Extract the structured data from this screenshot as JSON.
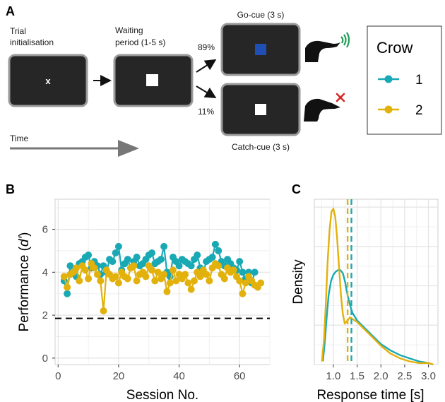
{
  "panel_a": {
    "letter": "A",
    "trial_label": [
      "Trial",
      "initialisation"
    ],
    "waiting_label": [
      "Waiting",
      "period (1-5 s)"
    ],
    "go_label": "Go-cue (3 s)",
    "catch_label": "Catch-cue (3 s)",
    "pct_go": "89%",
    "pct_catch": "11%",
    "fixation_symbol": "x",
    "time_label": "Time",
    "colors": {
      "screen": "#262626",
      "screen_border": "#9a9a9a",
      "go_square": "#1f4fb5",
      "square": "#ffffff",
      "check": "#1f9d55",
      "cross": "#d62828"
    },
    "icons": [
      "crow-go-icon",
      "crow-catch-icon"
    ]
  },
  "legend": {
    "title": "Crow",
    "entries": [
      {
        "label": "1",
        "color": "#19a9b5"
      },
      {
        "label": "2",
        "color": "#e2b10b"
      }
    ]
  },
  "chart_data": [
    {
      "type": "line",
      "panel": "B",
      "xlabel": "Session No.",
      "ylabel": "Performance (d')",
      "xlim": [
        -1,
        70
      ],
      "ylim": [
        -0.3,
        7.4
      ],
      "xticks": [
        0,
        20,
        40,
        60
      ],
      "yticks": [
        0,
        2,
        4,
        6
      ],
      "grid": true,
      "threshold": 1.85,
      "series": [
        {
          "name": "1",
          "color": "#19a9b5",
          "x": [
            2,
            3,
            4,
            5,
            6,
            7,
            8,
            9,
            10,
            11,
            12,
            13,
            14,
            15,
            16,
            17,
            18,
            19,
            20,
            21,
            22,
            23,
            24,
            25,
            26,
            27,
            28,
            29,
            30,
            31,
            32,
            33,
            34,
            35,
            36,
            37,
            38,
            39,
            40,
            41,
            42,
            43,
            44,
            45,
            46,
            47,
            48,
            49,
            50,
            51,
            52,
            53,
            54,
            55,
            56,
            57,
            58,
            59,
            60,
            61,
            62,
            63,
            64,
            65
          ],
          "y": [
            3.6,
            3.0,
            4.3,
            4.0,
            3.8,
            4.4,
            4.5,
            4.7,
            4.8,
            4.2,
            4.5,
            4.3,
            3.9,
            4.3,
            4.0,
            4.6,
            4.5,
            4.9,
            5.2,
            4.1,
            4.4,
            4.6,
            4.2,
            4.5,
            4.7,
            4.3,
            4.4,
            4.6,
            4.8,
            4.9,
            4.4,
            4.5,
            4.6,
            5.2,
            4.0,
            3.8,
            4.7,
            4.5,
            4.3,
            4.6,
            4.5,
            4.4,
            4.3,
            4.6,
            4.8,
            4.2,
            4.0,
            4.5,
            4.6,
            4.7,
            5.3,
            5.0,
            4.5,
            4.3,
            4.6,
            4.4,
            4.2,
            4.1,
            4.5,
            4.0,
            3.7,
            4.0,
            3.5,
            4.0
          ]
        },
        {
          "name": "2",
          "color": "#e2b10b",
          "x": [
            2,
            3,
            4,
            5,
            6,
            7,
            8,
            9,
            10,
            11,
            12,
            13,
            14,
            15,
            16,
            17,
            18,
            19,
            20,
            21,
            22,
            23,
            24,
            25,
            26,
            27,
            28,
            29,
            30,
            31,
            32,
            33,
            34,
            35,
            36,
            37,
            38,
            39,
            40,
            41,
            42,
            43,
            44,
            45,
            46,
            47,
            48,
            49,
            50,
            51,
            52,
            53,
            54,
            55,
            56,
            57,
            58,
            59,
            60,
            61,
            62,
            63,
            64,
            65,
            66,
            67
          ],
          "y": [
            3.8,
            3.3,
            3.9,
            4.0,
            4.2,
            3.6,
            4.3,
            4.1,
            3.7,
            4.4,
            4.2,
            3.9,
            3.6,
            2.2,
            4.1,
            3.9,
            3.7,
            3.8,
            3.5,
            4.0,
            3.8,
            3.7,
            4.2,
            4.3,
            3.6,
            3.9,
            4.0,
            3.8,
            4.3,
            4.1,
            3.6,
            4.0,
            3.7,
            3.9,
            3.1,
            3.5,
            4.1,
            3.6,
            3.9,
            3.7,
            3.9,
            3.5,
            3.2,
            3.6,
            4.0,
            3.8,
            4.1,
            3.9,
            3.6,
            4.2,
            4.4,
            4.3,
            3.9,
            3.7,
            4.2,
            4.0,
            4.1,
            3.8,
            3.6,
            3.0,
            3.5,
            3.8,
            3.6,
            3.4,
            3.3,
            3.5
          ]
        }
      ]
    },
    {
      "type": "line",
      "panel": "C",
      "xlabel": "Response time [s]",
      "ylabel": "Density",
      "xlim": [
        0.6,
        3.2
      ],
      "ylim": [
        0,
        1.05
      ],
      "xticks": [
        1.0,
        1.5,
        2.0,
        2.5,
        3.0
      ],
      "xtick_labels": [
        "1.0",
        "1.5",
        "2.0",
        "2.5",
        "3.0"
      ],
      "grid": true,
      "medians": [
        {
          "series": "1",
          "x": 1.38
        },
        {
          "series": "2",
          "x": 1.3
        }
      ],
      "series": [
        {
          "name": "1",
          "color": "#19a9b5",
          "x": [
            0.78,
            0.82,
            0.86,
            0.9,
            0.95,
            1.0,
            1.05,
            1.1,
            1.15,
            1.2,
            1.25,
            1.3,
            1.35,
            1.4,
            1.5,
            1.6,
            1.7,
            1.8,
            1.9,
            2.0,
            2.2,
            2.4,
            2.6,
            2.8,
            3.0,
            3.1
          ],
          "y": [
            0.02,
            0.14,
            0.3,
            0.44,
            0.53,
            0.57,
            0.59,
            0.6,
            0.6,
            0.58,
            0.52,
            0.44,
            0.38,
            0.33,
            0.28,
            0.25,
            0.22,
            0.19,
            0.16,
            0.13,
            0.09,
            0.06,
            0.04,
            0.02,
            0.01,
            0.0
          ]
        },
        {
          "name": "2",
          "color": "#e2b10b",
          "x": [
            0.76,
            0.8,
            0.84,
            0.88,
            0.92,
            0.96,
            1.0,
            1.04,
            1.08,
            1.12,
            1.16,
            1.2,
            1.24,
            1.3,
            1.35,
            1.4,
            1.5,
            1.6,
            1.7,
            1.8,
            1.9,
            2.0,
            2.2,
            2.4,
            2.6,
            2.8,
            3.0,
            3.1
          ],
          "y": [
            0.02,
            0.15,
            0.38,
            0.65,
            0.85,
            0.97,
            0.99,
            0.94,
            0.8,
            0.62,
            0.44,
            0.32,
            0.26,
            0.28,
            0.3,
            0.29,
            0.27,
            0.24,
            0.21,
            0.18,
            0.15,
            0.12,
            0.07,
            0.04,
            0.02,
            0.01,
            0.01,
            0.0
          ]
        }
      ]
    }
  ]
}
